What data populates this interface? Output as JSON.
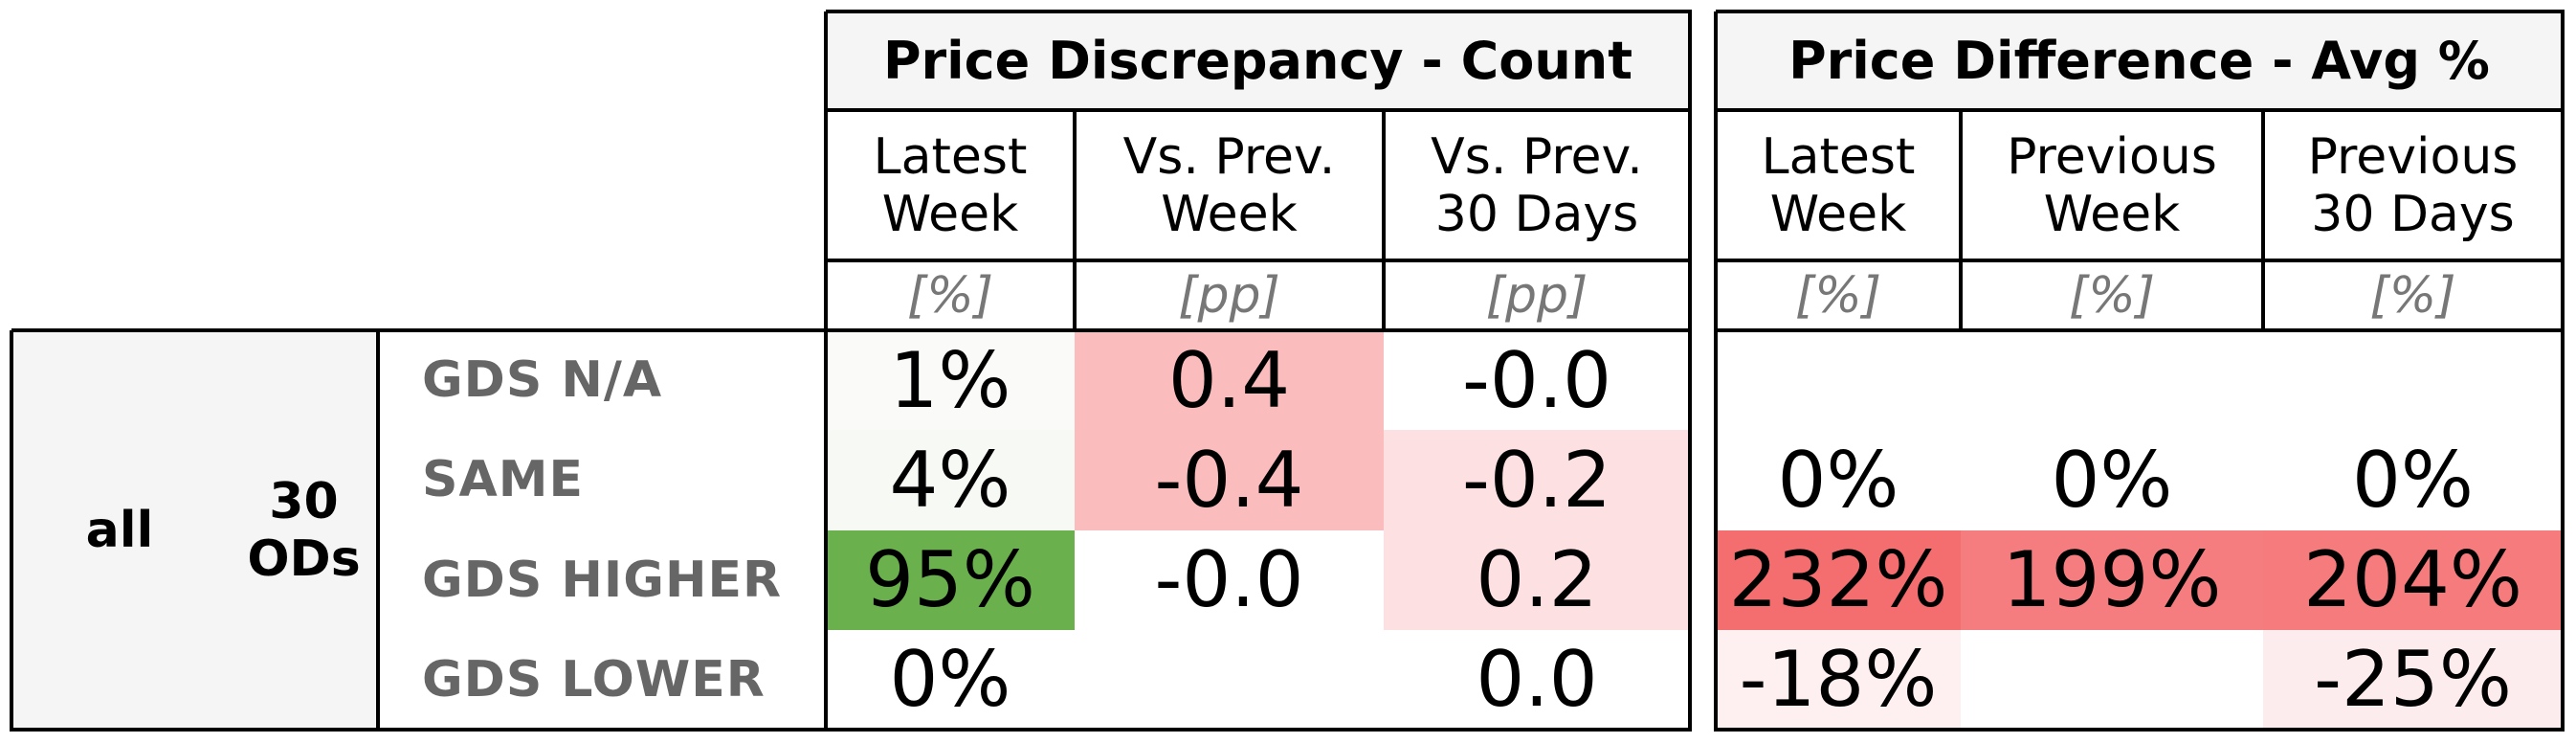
{
  "chart_data": {
    "type": "table",
    "group_labels": [
      "all",
      "30\nODs"
    ],
    "row_labels": [
      "GDS N/A",
      "SAME",
      "GDS HIGHER",
      "GDS LOWER"
    ],
    "sections": [
      {
        "title": "Price Discrepancy - Count",
        "columns": [
          {
            "header": "Latest\nWeek",
            "unit": "[%]",
            "values": [
              "1%",
              "4%",
              "95%",
              "0%"
            ],
            "colors": [
              "#fafbf8",
              "#f7f9f5",
              "#6ab04c",
              "#ffffff"
            ]
          },
          {
            "header": "Vs. Prev.\nWeek",
            "unit": "[pp]",
            "values": [
              "0.4",
              "-0.4",
              "-0.0",
              ""
            ],
            "colors": [
              "#fbbcbe",
              "#fbbcbe",
              "#ffffff",
              "#ffffff"
            ]
          },
          {
            "header": "Vs. Prev.\n30 Days",
            "unit": "[pp]",
            "values": [
              "-0.0",
              "-0.2",
              "0.2",
              "0.0"
            ],
            "colors": [
              "#ffffff",
              "#fde0e1",
              "#fde0e1",
              "#ffffff"
            ]
          }
        ]
      },
      {
        "title": "Price Difference - Avg %",
        "columns": [
          {
            "header": "Latest\nWeek",
            "unit": "[%]",
            "values": [
              "",
              "0%",
              "232%",
              "-18%"
            ],
            "colors": [
              "#ffffff",
              "#ffffff",
              "#f46e70",
              "#fef0f0"
            ]
          },
          {
            "header": "Previous\nWeek",
            "unit": "[%]",
            "values": [
              "",
              "0%",
              "199%",
              ""
            ],
            "colors": [
              "#ffffff",
              "#ffffff",
              "#f67d7f",
              "#ffffff"
            ]
          },
          {
            "header": "Previous\n30 Days",
            "unit": "[%]",
            "values": [
              "",
              "0%",
              "204%",
              "-25%"
            ],
            "colors": [
              "#ffffff",
              "#ffffff",
              "#f67b7d",
              "#fdeced"
            ]
          }
        ]
      }
    ]
  }
}
